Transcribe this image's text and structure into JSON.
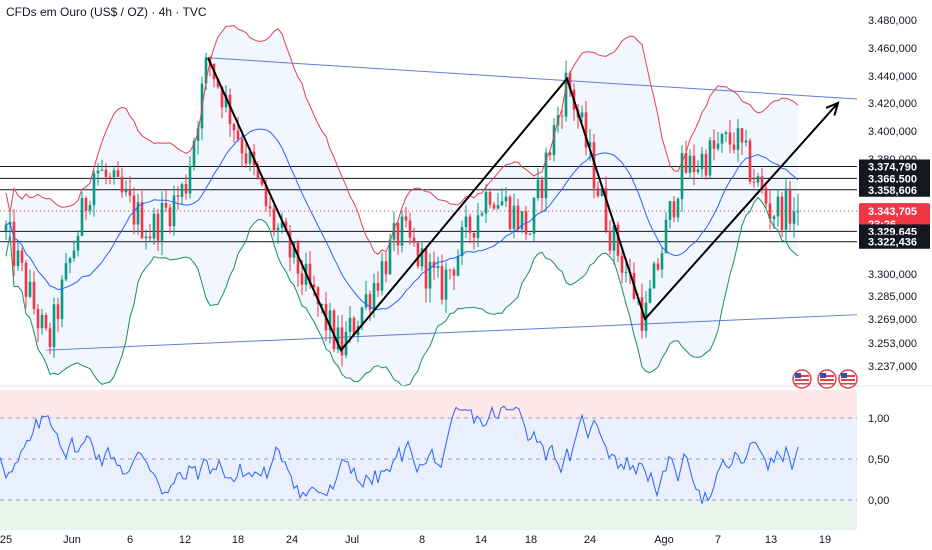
{
  "chart": {
    "symbol_title": "CFDs em Ouro (US$ / OZ)",
    "interval": "4h",
    "source": "TVC"
  },
  "chart_data": [
    {
      "type": "line",
      "panel": "price",
      "y_ticks": [
        "3.480,000",
        "3.460,000",
        "3.440,000",
        "3.420,000",
        "3.400,000",
        "3.380,000",
        "3.300,000",
        "3.285,000",
        "3.269,000",
        "3.253,000",
        "3.237,000"
      ],
      "x_ticks": [
        "25",
        "Jun",
        "6",
        "12",
        "18",
        "24",
        "Jul",
        "8",
        "14",
        "18",
        "24",
        "Ago",
        "7",
        "13",
        "19"
      ],
      "ylim": [
        3237,
        3480
      ],
      "price_labels": [
        {
          "text": "3.374,790",
          "value": 3374.79,
          "style": "black"
        },
        {
          "text": "3.366,500",
          "value": 3366.5,
          "style": "black"
        },
        {
          "text": "3.358,606",
          "value": 3358.606,
          "style": "black"
        },
        {
          "text": "3.343,705",
          "value": 3343.705,
          "style": "red"
        },
        {
          "text": "23:26",
          "value": 3343.705,
          "style": "red-sub"
        },
        {
          "text": "3.329,645",
          "value": 3329.645,
          "style": "black"
        },
        {
          "text": "3.322,436",
          "value": 3322.436,
          "style": "black"
        }
      ],
      "horizontal_lines": [
        3374.79,
        3366.5,
        3358.606,
        3329.645,
        3322.436
      ],
      "zigzag": [
        [
          3453,
          "Jun 12"
        ],
        [
          3248,
          "Jun 29"
        ],
        [
          3438,
          "Jul 22"
        ],
        [
          3269,
          "Jul 31"
        ],
        [
          3420,
          "Ago 19"
        ]
      ],
      "colors": {
        "candle_up": "#089981",
        "candle_down": "#f23645",
        "bb_upper": "#e0434e",
        "bb_lower": "#1a8f5c",
        "bb_mid": "#2962ff",
        "trend": "#5b7fd6",
        "last_price": "#f23645"
      }
    },
    {
      "type": "line",
      "panel": "oscillator",
      "y_ticks": [
        "1,00",
        "0,50",
        "0,00"
      ],
      "ylim": [
        -0.35,
        1.35
      ],
      "levels": [
        1.0,
        0.5,
        0.0
      ],
      "colors": {
        "line": "#2962ff",
        "upper_zone": "#fde5e7",
        "mid_zone": "#e8eefb",
        "lower_zone": "#e5f4ec"
      }
    }
  ]
}
